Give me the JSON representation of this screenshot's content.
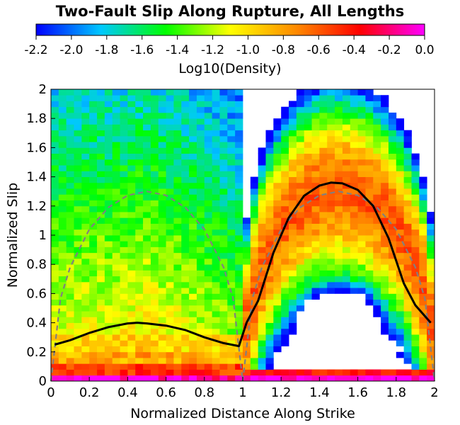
{
  "chart_data": {
    "type": "heatmap",
    "title": "Two-Fault Slip Along Rupture, All Lengths",
    "xlabel": "Normalized Distance Along Strike",
    "ylabel": "Normalized Slip",
    "xlim": [
      0,
      2
    ],
    "ylim": [
      0,
      2
    ],
    "x_ticks": [
      "0",
      "0.2",
      "0.4",
      "0.6",
      "0.8",
      "1",
      "1.2",
      "1.4",
      "1.6",
      "1.8",
      "2"
    ],
    "y_ticks": [
      "0",
      "0.2",
      "0.4",
      "0.6",
      "0.8",
      "1",
      "1.2",
      "1.4",
      "1.6",
      "1.8",
      "2"
    ],
    "colorbar": {
      "label": "Log10(Density)",
      "range": [
        -2.2,
        0.0
      ],
      "ticks": [
        "-2.2",
        "-2.0",
        "-1.8",
        "-1.6",
        "-1.4",
        "-1.2",
        "-1.0",
        "-0.8",
        "-0.6",
        "-0.4",
        "-0.2",
        "0.0"
      ],
      "colors": [
        "#0000ff",
        "#00c8ff",
        "#00ff00",
        "#ffff00",
        "#ff8c00",
        "#ff0000",
        "#ff00ff"
      ]
    },
    "heatmap_bins": {
      "x_bin_width": 0.04,
      "y_bin_width": 0.04
    },
    "mean_slip_curve": {
      "color": "#000000",
      "x": [
        0.02,
        0.1,
        0.2,
        0.3,
        0.4,
        0.45,
        0.5,
        0.6,
        0.7,
        0.8,
        0.9,
        0.98,
        1.02,
        1.08,
        1.16,
        1.24,
        1.32,
        1.4,
        1.46,
        1.52,
        1.6,
        1.68,
        1.76,
        1.84,
        1.9,
        1.98
      ],
      "y": [
        0.25,
        0.28,
        0.33,
        0.37,
        0.395,
        0.4,
        0.395,
        0.38,
        0.35,
        0.3,
        0.26,
        0.24,
        0.4,
        0.55,
        0.88,
        1.12,
        1.27,
        1.34,
        1.36,
        1.355,
        1.31,
        1.2,
        0.98,
        0.67,
        0.52,
        0.4
      ]
    },
    "reference_curve": {
      "color": "#808080",
      "style": "dashed",
      "segments": [
        {
          "x": [
            0.0,
            0.05,
            0.1,
            0.2,
            0.3,
            0.4,
            0.5,
            0.6,
            0.7,
            0.8,
            0.9,
            0.95,
            1.0
          ],
          "y": [
            0.0,
            0.567,
            0.78,
            1.04,
            1.191,
            1.273,
            1.3,
            1.273,
            1.191,
            1.04,
            0.78,
            0.567,
            0.0
          ]
        },
        {
          "x": [
            1.0,
            1.05,
            1.1,
            1.2,
            1.3,
            1.4,
            1.5,
            1.6,
            1.7,
            1.8,
            1.9,
            1.95,
            2.0
          ],
          "y": [
            0.0,
            0.567,
            0.78,
            1.04,
            1.191,
            1.273,
            1.3,
            1.273,
            1.191,
            1.04,
            0.78,
            0.567,
            0.0
          ]
        }
      ]
    }
  }
}
